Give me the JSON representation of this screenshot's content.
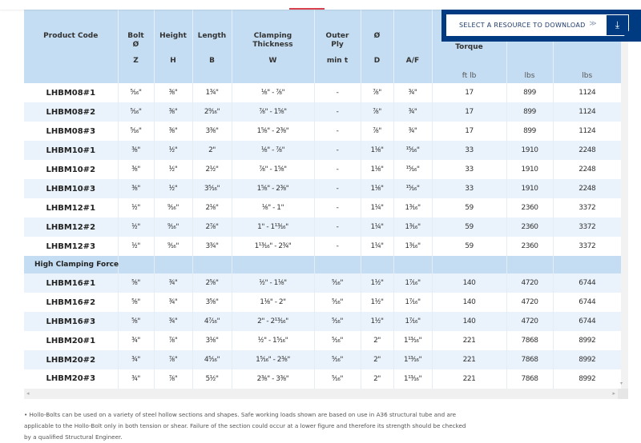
{
  "top_bar": {
    "partial_label": "Outer"
  },
  "download": {
    "select_label": "SELECT A RESOURCE TO DOWNLOAD",
    "chevron_icon": "double-chevron-down-icon",
    "button_icon": "download-arrow-icon",
    "colors": {
      "panel": "#003a80",
      "select_bg": "#ffffff"
    }
  },
  "table": {
    "headers": [
      {
        "title": "Product Code",
        "symbol": "",
        "unit": ""
      },
      {
        "title": "Bolt\nØ",
        "symbol": "Z",
        "unit": ""
      },
      {
        "title": "Height",
        "symbol": "H",
        "unit": ""
      },
      {
        "title": "Length",
        "symbol": "B",
        "unit": ""
      },
      {
        "title": "Clamping\nThickness",
        "symbol": "W",
        "unit": ""
      },
      {
        "title": "Outer\nPly",
        "symbol": "min t",
        "unit": ""
      },
      {
        "title": "Ø",
        "symbol": "D",
        "unit": ""
      },
      {
        "title": "",
        "symbol": "A/F",
        "unit": ""
      },
      {
        "title": "Torque",
        "symbol": "",
        "unit": "ft lb"
      },
      {
        "title": "",
        "symbol": "",
        "unit": "lbs"
      },
      {
        "title": "",
        "symbol": "",
        "unit": "lbs"
      }
    ],
    "rows": [
      {
        "type": "data",
        "cells": [
          "LHBM08#1",
          "⁵⁄₁₆\"",
          "³⁄₈\"",
          "1³⁄₄\"",
          "¹⁄₈\" - ⁷⁄₈\"",
          "-",
          "⁷⁄₈\"",
          "³⁄₄\"",
          "17",
          "899",
          "1124"
        ]
      },
      {
        "type": "data",
        "cells": [
          "LHBM08#2",
          "⁵⁄₁₆\"",
          "³⁄₈\"",
          "2⁹⁄₁₆\"",
          "⁷⁄₈\" - 1⁵⁄₈\"",
          "-",
          "⁷⁄₈\"",
          "³⁄₄\"",
          "17",
          "899",
          "1124"
        ]
      },
      {
        "type": "data",
        "cells": [
          "LHBM08#3",
          "⁵⁄₁₆\"",
          "³⁄₈\"",
          "3³⁄₈\"",
          "1⁵⁄₈\" - 2³⁄₈\"",
          "-",
          "⁷⁄₈\"",
          "³⁄₄\"",
          "17",
          "899",
          "1124"
        ]
      },
      {
        "type": "data",
        "cells": [
          "LHBM10#1",
          "³⁄₈\"",
          "¹⁄₂\"",
          "2\"",
          "¹⁄₈\" - ⁷⁄₈\"",
          "-",
          "1¹⁄₈\"",
          "¹⁵⁄₁₆\"",
          "33",
          "1910",
          "2248"
        ]
      },
      {
        "type": "data",
        "cells": [
          "LHBM10#2",
          "³⁄₈\"",
          "¹⁄₂\"",
          "2¹⁄₂\"",
          "⁷⁄₈\" - 1⁵⁄₈\"",
          "-",
          "1¹⁄₈\"",
          "¹⁵⁄₁₆\"",
          "33",
          "1910",
          "2248"
        ]
      },
      {
        "type": "data",
        "cells": [
          "LHBM10#3",
          "³⁄₈\"",
          "¹⁄₂\"",
          "3⁵⁄₁₆\"",
          "1⁵⁄₈\" - 2³⁄₈\"",
          "-",
          "1¹⁄₈\"",
          "¹⁵⁄₁₆\"",
          "33",
          "1910",
          "2248"
        ]
      },
      {
        "type": "data",
        "cells": [
          "LHBM12#1",
          "¹⁄₂\"",
          "⁹⁄₁₆\"",
          "2¹⁄₈\"",
          "¹⁄₈\" - 1\"",
          "-",
          "1¹⁄₄\"",
          "1³⁄₁₆\"",
          "59",
          "2360",
          "3372"
        ]
      },
      {
        "type": "data",
        "cells": [
          "LHBM12#2",
          "¹⁄₂\"",
          "⁹⁄₁₆\"",
          "2⁷⁄₈\"",
          "1\" - 1¹³⁄₁₆\"",
          "-",
          "1¹⁄₄\"",
          "1³⁄₁₆\"",
          "59",
          "2360",
          "3372"
        ]
      },
      {
        "type": "data",
        "cells": [
          "LHBM12#3",
          "¹⁄₂\"",
          "⁹⁄₁₆\"",
          "3³⁄₄\"",
          "1¹³⁄₁₆\" - 2³⁄₄\"",
          "-",
          "1¹⁄₄\"",
          "1³⁄₁₆\"",
          "59",
          "2360",
          "3372"
        ]
      },
      {
        "type": "section",
        "cells": [
          "High Clamping Force",
          "",
          "",
          "",
          "",
          "",
          "",
          "",
          "",
          "",
          ""
        ]
      },
      {
        "type": "data",
        "cells": [
          "LHBM16#1",
          "⁵⁄₈\"",
          "³⁄₄\"",
          "2⁵⁄₈\"",
          "¹⁄₂\" - 1¹⁄₈\"",
          "⁵⁄₁₆\"",
          "1¹⁄₂\"",
          "1⁷⁄₁₆\"",
          "140",
          "4720",
          "6744"
        ]
      },
      {
        "type": "data",
        "cells": [
          "LHBM16#2",
          "⁵⁄₈\"",
          "³⁄₄\"",
          "3⁵⁄₈\"",
          "1¹⁄₈\" - 2\"",
          "⁵⁄₁₆\"",
          "1¹⁄₂\"",
          "1⁷⁄₁₆\"",
          "140",
          "4720",
          "6744"
        ]
      },
      {
        "type": "data",
        "cells": [
          "LHBM16#3",
          "⁵⁄₈\"",
          "³⁄₄\"",
          "4⁷⁄₁₆\"",
          "2\" - 2¹³⁄₁₆\"",
          "⁵⁄₁₆\"",
          "1¹⁄₂\"",
          "1⁷⁄₁₆\"",
          "140",
          "4720",
          "6744"
        ]
      },
      {
        "type": "data",
        "cells": [
          "LHBM20#1",
          "³⁄₄\"",
          "⁷⁄₈\"",
          "3¹⁄₈\"",
          "¹⁄₂\" - 1⁵⁄₁₆\"",
          "⁵⁄₁₆\"",
          "2\"",
          "1¹³⁄₁₆\"",
          "221",
          "7868",
          "8992"
        ]
      },
      {
        "type": "data",
        "cells": [
          "LHBM20#2",
          "³⁄₄\"",
          "⁷⁄₈\"",
          "4⁵⁄₁₆\"",
          "1⁵⁄₁₆\" - 2³⁄₈\"",
          "⁵⁄₁₆\"",
          "2\"",
          "1¹³⁄₁₆\"",
          "221",
          "7868",
          "8992"
        ]
      },
      {
        "type": "data",
        "cells": [
          "LHBM20#3",
          "³⁄₄\"",
          "⁷⁄₈\"",
          "5¹⁄₂\"",
          "2³⁄₈\" - 3³⁄₈\"",
          "⁵⁄₁₆\"",
          "2\"",
          "1¹³⁄₁₆\"",
          "221",
          "7868",
          "8992"
        ]
      }
    ],
    "colors": {
      "header_bg": "#c5ddf2",
      "row_alt_bg": "#eaf3fc",
      "row_bg": "#ffffff"
    }
  },
  "scrollbar": {
    "left_arrow": "◂",
    "right_arrow": "▸",
    "down_arrow": "▾"
  },
  "footnote": "• Hollo-Bolts can be used on a variety of steel hollow sections and shapes. Safe working loads shown are based on use in A36 structural tube and are applicable to the Hollo-Bolt only in both tension or shear. Failure of the section could occur at a lower figure and therefore its strength should be checked by a qualified Structural Engineer."
}
